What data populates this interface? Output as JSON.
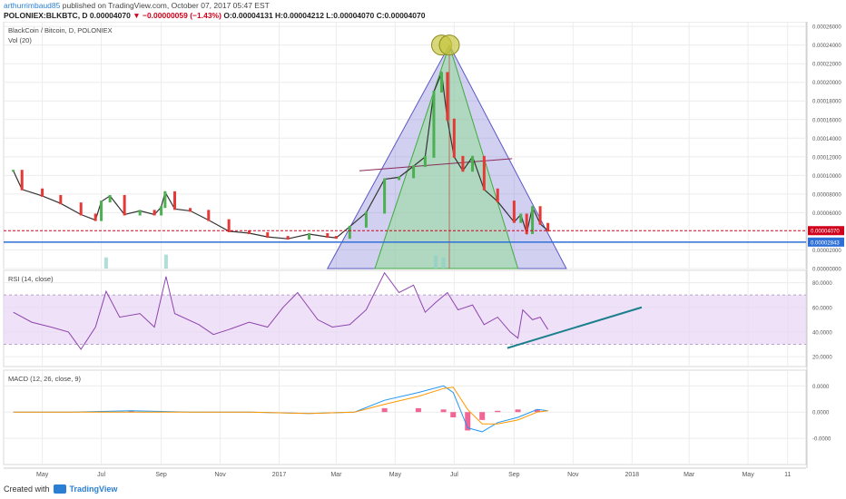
{
  "header": {
    "user": "arthurrimbaud85",
    "published_text": "published on TradingView.com, October 07, 2017 05:47 EST",
    "symbol_line_pre": "POLONIEX:BLKBTC, D  0.00004070 ",
    "arrow": "▼",
    "change": "−0.00000059 (−1.43%)",
    "ohlc": " O:0.00004131 H:0.00004212 L:0.00004070 C:0.00004070"
  },
  "footer": {
    "created_with": "Created with",
    "brand": "TradingView"
  },
  "chart_data": {
    "type": "line",
    "panes": {
      "price": {
        "title": "BlackCoin / Bitcoin, D, POLONIEX",
        "sub": "Vol (20)",
        "y_ticks": [
          "0.00026000",
          "0.00024000",
          "0.00022000",
          "0.00020000",
          "0.00018000",
          "0.00016000",
          "0.00014000",
          "0.00012000",
          "0.00010000",
          "0.00008000",
          "0.00006000",
          "0.00002000",
          "0.00000000"
        ],
        "y_tick_values": [
          0.00026,
          0.00024,
          0.00022,
          0.0002,
          0.00018,
          0.00016,
          0.00014,
          0.00012,
          0.0001,
          8e-05,
          6e-05,
          2e-05,
          0
        ],
        "ylim": [
          0,
          0.000265
        ],
        "last_price_label": "0.00004070",
        "last_price": 4.07e-05,
        "support_label": "0.00002843",
        "support": 2.843e-05,
        "series": [
          {
            "name": "",
            "x": [
              "2016-04-01",
              "2016-04-10",
              "2016-05-01",
              "2016-05-20",
              "2016-06-10",
              "2016-06-25",
              "2016-07-01",
              "2016-07-10",
              "2016-07-25",
              "2016-08-10",
              "2016-08-25",
              "2016-09-01",
              "2016-09-05",
              "2016-09-15",
              "2016-10-01",
              "2016-10-20",
              "2016-11-10",
              "2016-12-01",
              "2016-12-20",
              "2017-01-10",
              "2017-02-01",
              "2017-02-20",
              "2017-03-01",
              "2017-03-15",
              "2017-04-01",
              "2017-04-20",
              "2017-05-05",
              "2017-05-20",
              "2017-06-01",
              "2017-06-10",
              "2017-06-18",
              "2017-06-24",
              "2017-07-01",
              "2017-07-10",
              "2017-07-20",
              "2017-08-01",
              "2017-08-15",
              "2017-09-01",
              "2017-09-08",
              "2017-09-14",
              "2017-09-20",
              "2017-09-28",
              "2017-10-06"
            ],
            "values": [
              0.000105,
              8.5e-05,
              7.8e-05,
              7e-05,
              5.8e-05,
              5.2e-05,
              7.2e-05,
              7.8e-05,
              5.8e-05,
              6.2e-05,
              5.8e-05,
              6.6e-05,
              8.2e-05,
              6.4e-05,
              6.2e-05,
              5.2e-05,
              4e-05,
              3.8e-05,
              3.4e-05,
              3.2e-05,
              3.7e-05,
              3.4e-05,
              3.3e-05,
              4.5e-05,
              6e-05,
              9.6e-05,
              9.8e-05,
              0.00011,
              0.00012,
              0.00019,
              0.00021,
              0.00016,
              0.00012,
              0.000105,
              0.00012,
              8.5e-05,
              7.2e-05,
              5e-05,
              5.8e-05,
              3.8e-05,
              6.6e-05,
              4.8e-05,
              4.07e-05
            ]
          }
        ],
        "volume_spikes": [
          {
            "x": "2016-07-06",
            "v": 1.2e-05
          },
          {
            "x": "2016-09-06",
            "v": 1.5e-05
          },
          {
            "x": "2017-06-12",
            "v": 1.4e-05
          },
          {
            "x": "2017-06-20",
            "v": 1.2e-05
          }
        ],
        "pattern": {
          "apex": {
            "x": "2017-06-26",
            "y": 0.00024
          },
          "outer_left": {
            "x": "2017-02-20",
            "y": 0
          },
          "outer_right": {
            "x": "2017-10-25",
            "y": 0
          },
          "inner_left": {
            "x": "2017-04-10",
            "y": 0
          },
          "inner_right": {
            "x": "2017-09-05",
            "y": 0
          },
          "midline": [
            {
              "x": "2017-03-25",
              "y": 0.000105
            },
            {
              "x": "2017-08-30",
              "y": 0.000118
            }
          ],
          "circles": [
            {
              "x": "2017-06-18",
              "y": 0.00024
            },
            {
              "x": "2017-06-26",
              "y": 0.00024
            }
          ]
        }
      },
      "rsi": {
        "title": "RSI (14, close)",
        "y_ticks": [
          "80.0000",
          "60.0000",
          "40.0000",
          "20.0000"
        ],
        "y_tick_values": [
          80,
          60,
          40,
          20
        ],
        "ylim": [
          12,
          90
        ],
        "band": [
          30,
          70
        ],
        "series": [
          {
            "name": "",
            "x": [
              "2016-04-01",
              "2016-04-20",
              "2016-05-10",
              "2016-05-28",
              "2016-06-10",
              "2016-06-25",
              "2016-07-06",
              "2016-07-20",
              "2016-08-10",
              "2016-08-25",
              "2016-09-06",
              "2016-09-15",
              "2016-10-10",
              "2016-10-25",
              "2016-11-10",
              "2016-12-01",
              "2016-12-20",
              "2017-01-05",
              "2017-01-20",
              "2017-02-10",
              "2017-02-25",
              "2017-03-15",
              "2017-04-01",
              "2017-04-20",
              "2017-05-05",
              "2017-05-20",
              "2017-06-01",
              "2017-06-12",
              "2017-06-24",
              "2017-07-05",
              "2017-07-20",
              "2017-08-01",
              "2017-08-15",
              "2017-08-28",
              "2017-09-05",
              "2017-09-10",
              "2017-09-20",
              "2017-09-28",
              "2017-10-06"
            ],
            "values": [
              56,
              48,
              44,
              40,
              26,
              44,
              73,
              52,
              55,
              44,
              85,
              55,
              46,
              38,
              42,
              48,
              44,
              60,
              72,
              50,
              44,
              46,
              58,
              88,
              72,
              78,
              56,
              64,
              72,
              58,
              62,
              46,
              52,
              40,
              35,
              58,
              50,
              52,
              42
            ]
          }
        ],
        "trendline": [
          {
            "x": "2017-08-25",
            "y": 27
          },
          {
            "x": "2018-01-11",
            "y": 60
          }
        ]
      },
      "macd": {
        "title": "MACD (12, 26, close, 9)",
        "y_ticks": [
          "0.0000",
          "0.0000",
          "-0.0000"
        ],
        "y_tick_values": [
          2e-05,
          0,
          -2e-05
        ],
        "ylim": [
          -4e-05,
          3.2e-05
        ],
        "macd_line": {
          "x": [
            "2016-04-01",
            "2016-06-01",
            "2016-08-01",
            "2016-10-01",
            "2016-12-01",
            "2017-02-01",
            "2017-03-20",
            "2017-04-20",
            "2017-05-25",
            "2017-06-20",
            "2017-06-30",
            "2017-07-15",
            "2017-07-30",
            "2017-08-15",
            "2017-09-05",
            "2017-09-25",
            "2017-10-06"
          ],
          "values": [
            0,
            0,
            1e-06,
            0,
            0,
            -1e-06,
            0,
            9e-06,
            1.5e-05,
            2e-05,
            1.5e-05,
            -1.2e-05,
            -1.5e-05,
            -8e-06,
            -4e-06,
            2e-06,
            1e-06
          ]
        },
        "signal_line": {
          "x": [
            "2016-04-01",
            "2016-06-01",
            "2016-08-01",
            "2016-10-01",
            "2016-12-01",
            "2017-02-01",
            "2017-03-20",
            "2017-04-20",
            "2017-05-25",
            "2017-06-20",
            "2017-06-30",
            "2017-07-15",
            "2017-07-30",
            "2017-08-15",
            "2017-09-05",
            "2017-09-25",
            "2017-10-06"
          ],
          "values": [
            0,
            0,
            0,
            0,
            0,
            -1e-06,
            0,
            6e-06,
            1.2e-05,
            1.8e-05,
            1.9e-05,
            2e-06,
            -9e-06,
            -9e-06,
            -6e-06,
            0,
            1e-06
          ]
        }
      }
    },
    "x_axis": {
      "ticks": [
        "May",
        "Jul",
        "Sep",
        "Nov",
        "2017",
        "Mar",
        "May",
        "Jul",
        "Sep",
        "Nov",
        "2018",
        "Mar",
        "May",
        "11"
      ],
      "tick_dates": [
        "2016-05-01",
        "2016-07-01",
        "2016-09-01",
        "2016-11-01",
        "2017-01-01",
        "2017-03-01",
        "2017-05-01",
        "2017-07-01",
        "2017-09-01",
        "2017-11-01",
        "2018-01-01",
        "2018-03-01",
        "2018-05-01",
        "2018-06-11"
      ],
      "xlim": [
        "2016-03-22",
        "2018-06-30"
      ]
    },
    "grid": true,
    "colors": {
      "up": "#4caf50",
      "down": "#e53935",
      "price": "#333333",
      "rsi": "#8e44ad",
      "macd": "#2196f3",
      "signal": "#ff9800",
      "hist": "#ec407a",
      "trend": "#1b7f8c",
      "outer_fill": "#7a78d4",
      "inner_fill": "#8fe08f",
      "support": "#2d6fd6",
      "last": "#d0021b"
    }
  }
}
